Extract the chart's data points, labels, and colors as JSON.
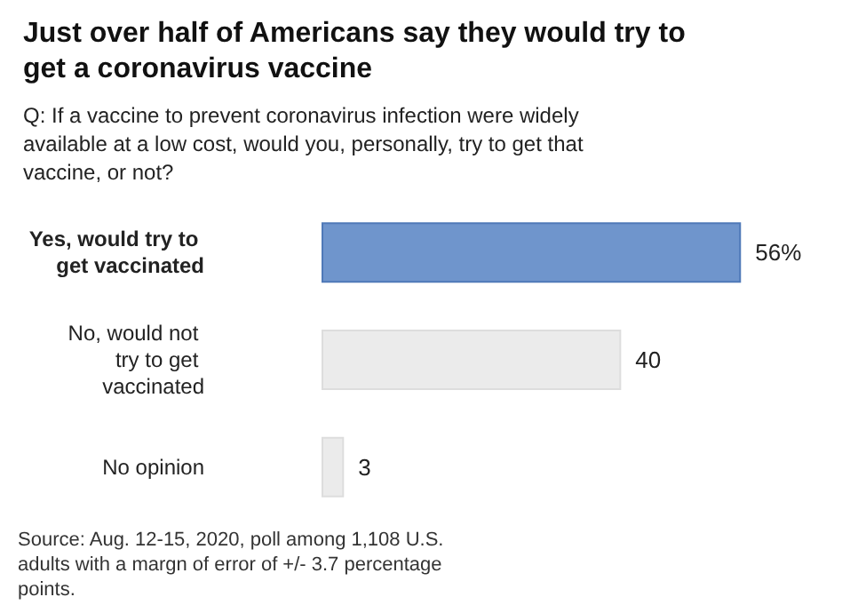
{
  "chart_data": {
    "type": "bar",
    "orientation": "horizontal",
    "title": "Just over half of Americans say they would try to get a coronavirus vaccine",
    "subtitle": "Q: If a vaccine to prevent coronavirus infection were widely available at a low cost, would you, personally, try to get that vaccine, or not?",
    "categories": [
      "Yes, would try to get vaccinated",
      "No, would not try to get vaccinated",
      "No opinion"
    ],
    "values": [
      56,
      40,
      3
    ],
    "colors": [
      "#6f95cc",
      "#ebebeb",
      "#ebebeb"
    ],
    "value_labels": [
      "56%",
      "40",
      "3"
    ],
    "annotations": [
      "Source: Aug. 12-15, 2020, poll among 1,108 U.S. adults with a margn of error of +/- 3.7 percentage points."
    ]
  }
}
